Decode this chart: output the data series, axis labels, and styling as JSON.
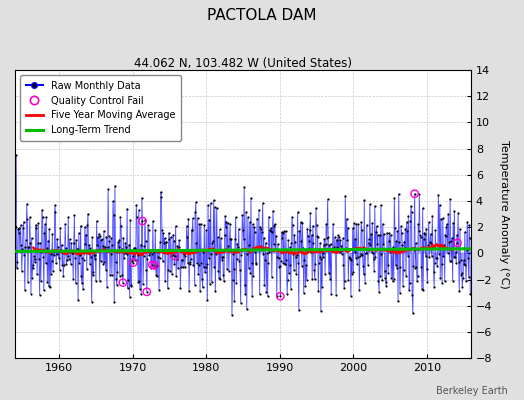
{
  "title": "PACTOLA DAM",
  "subtitle": "44.062 N, 103.482 W (United States)",
  "ylabel": "Temperature Anomaly (°C)",
  "credit": "Berkeley Earth",
  "start_year": 1954,
  "end_year": 2016,
  "ylim": [
    -8,
    14
  ],
  "yticks": [
    -8,
    -6,
    -4,
    -2,
    0,
    2,
    4,
    6,
    8,
    10,
    12,
    14
  ],
  "xticks": [
    1960,
    1970,
    1980,
    1990,
    2000,
    2010
  ],
  "raw_color": "#0000ff",
  "dot_color": "#000000",
  "qc_color": "#ff00cc",
  "ma_color": "#ff0000",
  "trend_color": "#00bb00",
  "bg_color": "#e0e0e0",
  "plot_bg": "#ffffff",
  "seed": 137
}
